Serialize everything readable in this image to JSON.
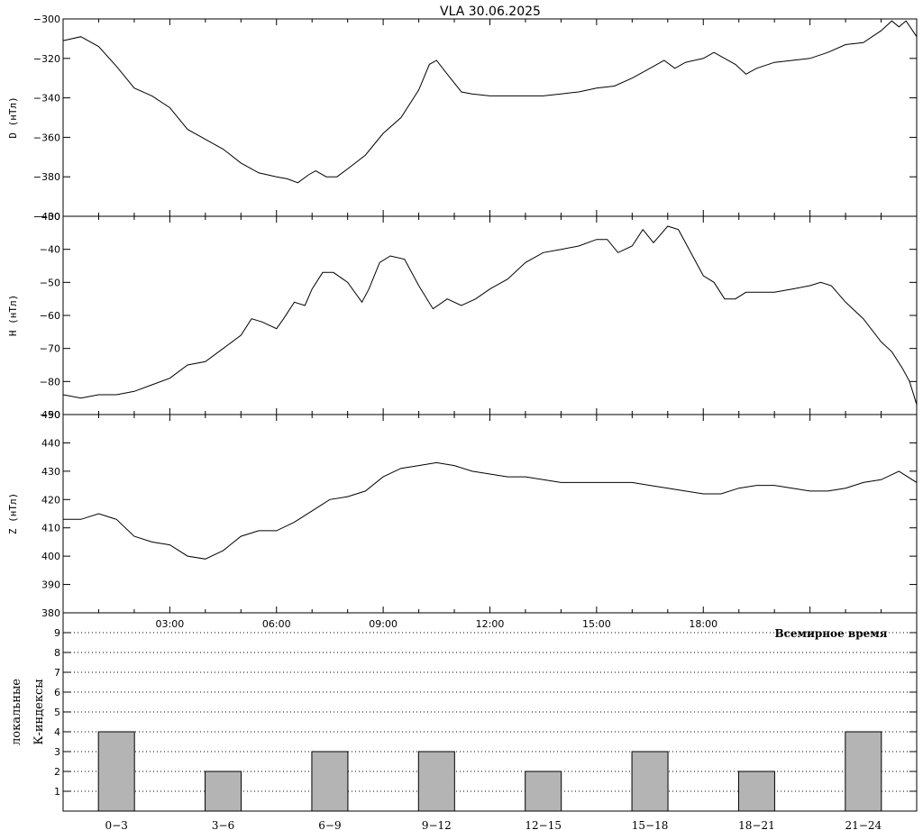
{
  "title": "VLA   30.06.2025",
  "colors": {
    "line": "#000000",
    "bar": "#b4b4b4",
    "background": "#ffffff"
  },
  "chart_data": [
    {
      "type": "line",
      "ylabel": "D (нТл)",
      "ylim": [
        -400,
        -300
      ],
      "yticks": [
        -400,
        -380,
        -360,
        -340,
        -320,
        -300
      ],
      "grid": false,
      "series": [
        {
          "values": [
            [
              0.0,
              -311
            ],
            [
              0.5,
              -309
            ],
            [
              1.0,
              -314
            ],
            [
              1.5,
              -324
            ],
            [
              2.0,
              -335
            ],
            [
              2.5,
              -339
            ],
            [
              3.0,
              -345
            ],
            [
              3.5,
              -356
            ],
            [
              4.0,
              -361
            ],
            [
              4.5,
              -366
            ],
            [
              5.0,
              -373
            ],
            [
              5.5,
              -378
            ],
            [
              6.0,
              -380
            ],
            [
              6.3,
              -381
            ],
            [
              6.6,
              -383
            ],
            [
              6.9,
              -379
            ],
            [
              7.1,
              -377
            ],
            [
              7.4,
              -380
            ],
            [
              7.7,
              -380
            ],
            [
              8.0,
              -376
            ],
            [
              8.5,
              -369
            ],
            [
              9.0,
              -358
            ],
            [
              9.5,
              -350
            ],
            [
              10.0,
              -336
            ],
            [
              10.3,
              -323
            ],
            [
              10.5,
              -321
            ],
            [
              10.8,
              -328
            ],
            [
              11.2,
              -337
            ],
            [
              11.5,
              -338
            ],
            [
              12.0,
              -339
            ],
            [
              12.5,
              -339
            ],
            [
              13.0,
              -339
            ],
            [
              13.5,
              -339
            ],
            [
              14.0,
              -338
            ],
            [
              14.5,
              -337
            ],
            [
              15.0,
              -335
            ],
            [
              15.5,
              -334
            ],
            [
              16.0,
              -330
            ],
            [
              16.5,
              -325
            ],
            [
              16.9,
              -321
            ],
            [
              17.2,
              -325
            ],
            [
              17.5,
              -322
            ],
            [
              18.0,
              -320
            ],
            [
              18.3,
              -317
            ],
            [
              18.6,
              -320
            ],
            [
              18.9,
              -323
            ],
            [
              19.2,
              -328
            ],
            [
              19.5,
              -325
            ],
            [
              20.0,
              -322
            ],
            [
              20.5,
              -321
            ],
            [
              21.0,
              -320
            ],
            [
              21.5,
              -317
            ],
            [
              22.0,
              -313
            ],
            [
              22.5,
              -312
            ],
            [
              23.0,
              -306
            ],
            [
              23.3,
              -301
            ],
            [
              23.5,
              -304
            ],
            [
              23.7,
              -301
            ],
            [
              24.0,
              -309
            ]
          ]
        }
      ]
    },
    {
      "type": "line",
      "ylabel": "H (нТл)",
      "ylim": [
        -90,
        -30
      ],
      "yticks": [
        -90,
        -80,
        -70,
        -60,
        -50,
        -40,
        -30
      ],
      "grid": false,
      "series": [
        {
          "values": [
            [
              0.0,
              -84
            ],
            [
              0.5,
              -85
            ],
            [
              1.0,
              -84
            ],
            [
              1.5,
              -84
            ],
            [
              2.0,
              -83
            ],
            [
              2.5,
              -81
            ],
            [
              3.0,
              -79
            ],
            [
              3.5,
              -75
            ],
            [
              4.0,
              -74
            ],
            [
              4.5,
              -70
            ],
            [
              5.0,
              -66
            ],
            [
              5.3,
              -61
            ],
            [
              5.6,
              -62
            ],
            [
              6.0,
              -64
            ],
            [
              6.2,
              -61
            ],
            [
              6.5,
              -56
            ],
            [
              6.8,
              -57
            ],
            [
              7.0,
              -52
            ],
            [
              7.3,
              -47
            ],
            [
              7.6,
              -47
            ],
            [
              8.0,
              -50
            ],
            [
              8.4,
              -56
            ],
            [
              8.6,
              -52
            ],
            [
              8.9,
              -44
            ],
            [
              9.2,
              -42
            ],
            [
              9.6,
              -43
            ],
            [
              10.0,
              -51
            ],
            [
              10.4,
              -58
            ],
            [
              10.8,
              -55
            ],
            [
              11.2,
              -57
            ],
            [
              11.6,
              -55
            ],
            [
              12.0,
              -52
            ],
            [
              12.5,
              -49
            ],
            [
              13.0,
              -44
            ],
            [
              13.5,
              -41
            ],
            [
              14.0,
              -40
            ],
            [
              14.5,
              -39
            ],
            [
              15.0,
              -37
            ],
            [
              15.3,
              -37
            ],
            [
              15.6,
              -41
            ],
            [
              16.0,
              -39
            ],
            [
              16.3,
              -34
            ],
            [
              16.6,
              -38
            ],
            [
              17.0,
              -33
            ],
            [
              17.3,
              -34
            ],
            [
              17.6,
              -40
            ],
            [
              18.0,
              -48
            ],
            [
              18.3,
              -50
            ],
            [
              18.6,
              -55
            ],
            [
              18.9,
              -55
            ],
            [
              19.2,
              -53
            ],
            [
              19.5,
              -53
            ],
            [
              20.0,
              -53
            ],
            [
              20.5,
              -52
            ],
            [
              21.0,
              -51
            ],
            [
              21.3,
              -50
            ],
            [
              21.6,
              -51
            ],
            [
              22.0,
              -56
            ],
            [
              22.5,
              -61
            ],
            [
              23.0,
              -68
            ],
            [
              23.3,
              -71
            ],
            [
              23.6,
              -76
            ],
            [
              23.8,
              -80
            ],
            [
              24.0,
              -87
            ]
          ]
        }
      ]
    },
    {
      "type": "line",
      "ylabel": "Z (нТл)",
      "ylim": [
        380,
        450
      ],
      "yticks": [
        380,
        390,
        400,
        410,
        420,
        430,
        440,
        450
      ],
      "grid": false,
      "series": [
        {
          "values": [
            [
              0.0,
              413
            ],
            [
              0.5,
              413
            ],
            [
              1.0,
              415
            ],
            [
              1.5,
              413
            ],
            [
              2.0,
              407
            ],
            [
              2.5,
              405
            ],
            [
              3.0,
              404
            ],
            [
              3.5,
              400
            ],
            [
              4.0,
              399
            ],
            [
              4.5,
              402
            ],
            [
              5.0,
              407
            ],
            [
              5.5,
              409
            ],
            [
              6.0,
              409
            ],
            [
              6.5,
              412
            ],
            [
              7.0,
              416
            ],
            [
              7.5,
              420
            ],
            [
              8.0,
              421
            ],
            [
              8.5,
              423
            ],
            [
              9.0,
              428
            ],
            [
              9.5,
              431
            ],
            [
              10.0,
              432
            ],
            [
              10.5,
              433
            ],
            [
              11.0,
              432
            ],
            [
              11.5,
              430
            ],
            [
              12.0,
              429
            ],
            [
              12.5,
              428
            ],
            [
              13.0,
              428
            ],
            [
              13.5,
              427
            ],
            [
              14.0,
              426
            ],
            [
              15.0,
              426
            ],
            [
              15.5,
              426
            ],
            [
              16.0,
              426
            ],
            [
              16.5,
              425
            ],
            [
              17.0,
              424
            ],
            [
              17.5,
              423
            ],
            [
              18.0,
              422
            ],
            [
              18.5,
              422
            ],
            [
              19.0,
              424
            ],
            [
              19.5,
              425
            ],
            [
              20.0,
              425
            ],
            [
              20.5,
              424
            ],
            [
              21.0,
              423
            ],
            [
              21.5,
              423
            ],
            [
              22.0,
              424
            ],
            [
              22.5,
              426
            ],
            [
              23.0,
              427
            ],
            [
              23.5,
              430
            ],
            [
              24.0,
              426
            ]
          ]
        }
      ]
    },
    {
      "type": "bar",
      "ylabel": "локальные К-индексы",
      "ylim": [
        0,
        10
      ],
      "yticks": [
        1,
        2,
        3,
        4,
        5,
        6,
        7,
        8,
        9
      ],
      "grid": true,
      "categories": [
        "0-3",
        "3-6",
        "6-9",
        "9-12",
        "12-15",
        "15-18",
        "18-21",
        "21-24"
      ],
      "values": [
        4,
        2,
        3,
        3,
        2,
        3,
        2,
        4
      ]
    }
  ],
  "xaxis": {
    "xlabel": "Всемирное время",
    "range": [
      0,
      24
    ],
    "ticks": [
      3,
      6,
      9,
      12,
      15,
      18
    ],
    "tick_labels": [
      "03:00",
      "06:00",
      "09:00",
      "12:00",
      "15:00",
      "18:00"
    ]
  }
}
